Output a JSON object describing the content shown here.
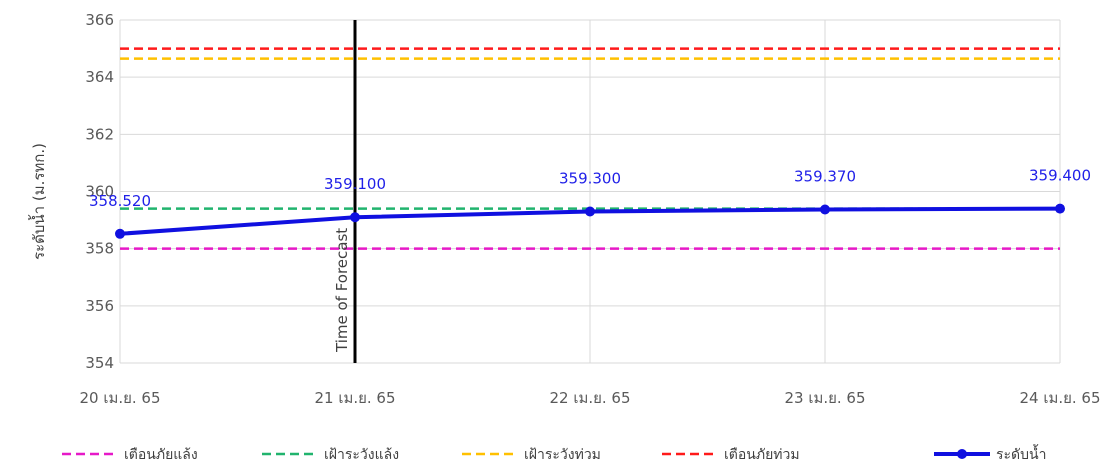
{
  "chart_data": {
    "type": "line",
    "ylabel": "ระดับน้ำ (ม.รทก.)",
    "ylim": [
      354,
      366
    ],
    "yticks": [
      354,
      356,
      358,
      360,
      362,
      364,
      366
    ],
    "categories": [
      "20 เม.ย. 65",
      "21 เม.ย. 65",
      "22 เม.ย. 65",
      "23 เม.ย. 65",
      "24 เม.ย. 65"
    ],
    "grid": true,
    "legend_position": "bottom",
    "forecast_marker": {
      "category": "21 เม.ย. 65",
      "label": "Time of Forecast"
    },
    "series": [
      {
        "name": "เตือนภัยแล้ง",
        "style": "dashed",
        "color": "#e619c8",
        "values": [
          358.0,
          358.0,
          358.0,
          358.0,
          358.0
        ]
      },
      {
        "name": "เฝ้าระวังแล้ง",
        "style": "dashed",
        "color": "#21b46e",
        "values": [
          359.4,
          359.4,
          359.4,
          359.4,
          359.4
        ]
      },
      {
        "name": "เฝ้าระวังท่วม",
        "style": "dashed",
        "color": "#ffc000",
        "values": [
          364.65,
          364.65,
          364.65,
          364.65,
          364.65
        ]
      },
      {
        "name": "เตือนภัยท่วม",
        "style": "dashed",
        "color": "#ff1a1a",
        "values": [
          365.0,
          365.0,
          365.0,
          365.0,
          365.0
        ]
      },
      {
        "name": "ระดับน้ำ",
        "style": "solid-markers",
        "color": "#1010e0",
        "values": [
          358.52,
          359.1,
          359.3,
          359.37,
          359.4
        ],
        "data_labels": [
          "358.520",
          "359.100",
          "359.300",
          "359.370",
          "359.400"
        ]
      }
    ]
  }
}
